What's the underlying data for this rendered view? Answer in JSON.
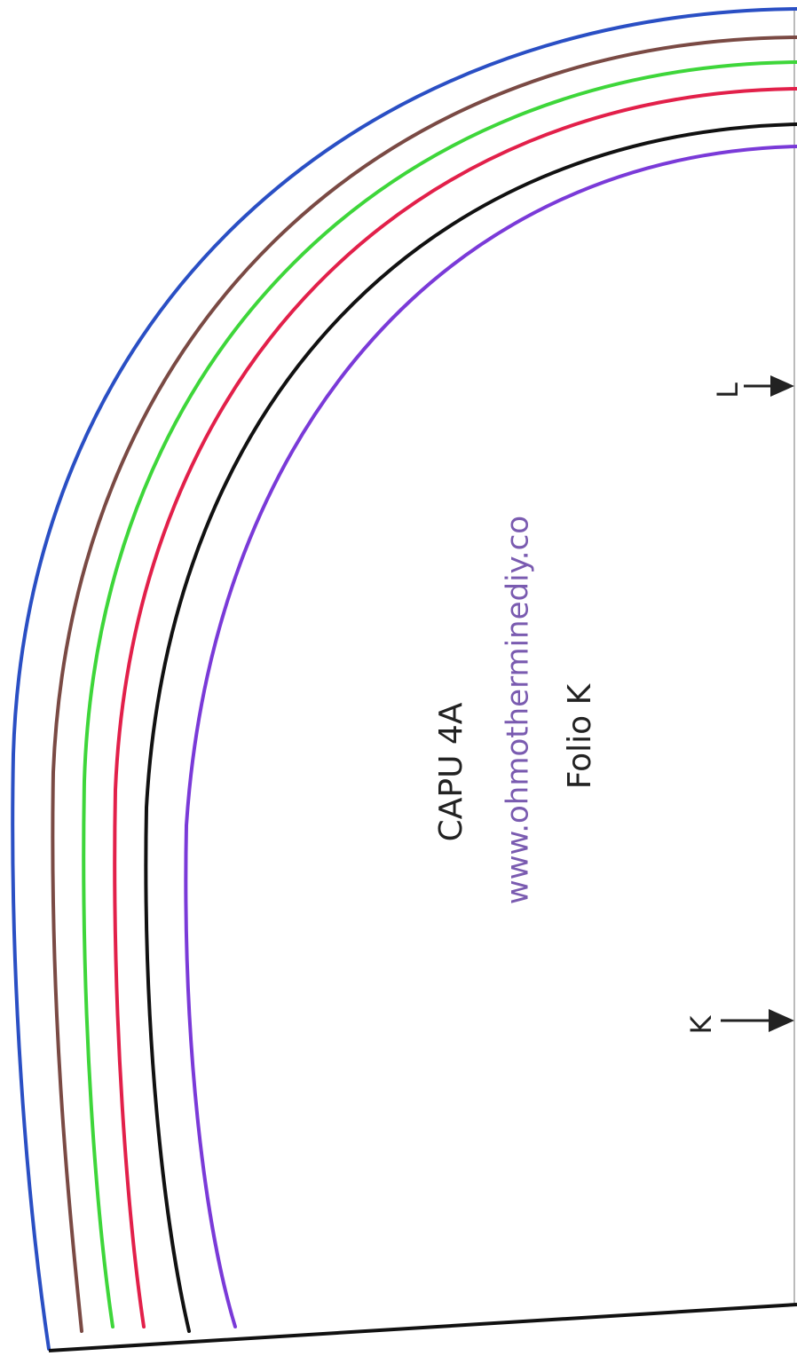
{
  "title": "CAPU 4A",
  "website": "www.ohmotherminediy.co",
  "piece": "Folio K",
  "markers": [
    "L",
    "K"
  ]
}
